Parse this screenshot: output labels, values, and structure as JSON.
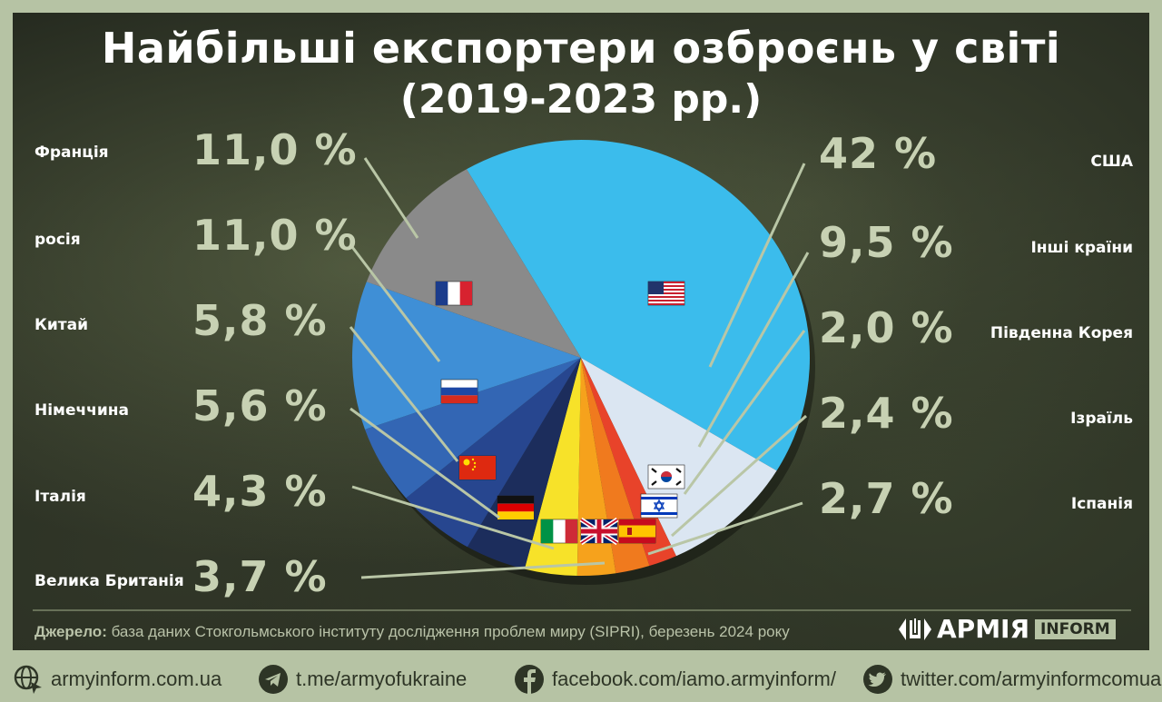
{
  "title": "Найбільші експортери озброєнь у світі",
  "subtitle": "(2019-2023 рр.)",
  "chart_data": {
    "type": "pie",
    "title": "Найбільші експортери озброєнь у світі",
    "subtitle": "(2019-2023 рр.)",
    "unit": "%",
    "slices": [
      {
        "label": "США",
        "value": 42,
        "value_label": "42 %",
        "color": "#3bbcec",
        "flag": "usa-flag-icon"
      },
      {
        "label": "Інші країни",
        "value": 9.5,
        "value_label": "9,5 %",
        "color": "#dbe6f2",
        "flag": ""
      },
      {
        "label": "Південна Корея",
        "value": 2.0,
        "value_label": "2,0 %",
        "color": "#e8432a",
        "flag": "south-korea-flag-icon"
      },
      {
        "label": "Ізраїль",
        "value": 2.4,
        "value_label": "2,4 %",
        "color": "#f07a1e",
        "flag": "israel-flag-icon"
      },
      {
        "label": "Іспанія",
        "value": 2.7,
        "value_label": "2,7 %",
        "color": "#f6a21c",
        "flag": "spain-flag-icon"
      },
      {
        "label": "Велика Британія",
        "value": 3.7,
        "value_label": "3,7 %",
        "color": "#f7e229",
        "flag": "uk-flag-icon"
      },
      {
        "label": "Італія",
        "value": 4.3,
        "value_label": "4,3 %",
        "color": "#1c2d5c",
        "flag": "italy-flag-icon"
      },
      {
        "label": "Німеччина",
        "value": 5.6,
        "value_label": "5,6 %",
        "color": "#27468f",
        "flag": "germany-flag-icon"
      },
      {
        "label": "Китай",
        "value": 5.8,
        "value_label": "5,8 %",
        "color": "#3366b4",
        "flag": "china-flag-icon"
      },
      {
        "label": "росія",
        "value": 11.0,
        "value_label": "11,0 %",
        "color": "#3f8fd6",
        "flag": "russia-flag-icon"
      },
      {
        "label": "Франція",
        "value": 11.0,
        "value_label": "11,0 %",
        "color": "#8a8a8a",
        "flag": "france-flag-icon"
      }
    ]
  },
  "labels_left": [
    {
      "country": "Франція",
      "pct": "11,0 %"
    },
    {
      "country": "росія",
      "pct": "11,0 %"
    },
    {
      "country": "Китай",
      "pct": "5,8 %"
    },
    {
      "country": "Німеччина",
      "pct": "5,6 %"
    },
    {
      "country": "Італія",
      "pct": "4,3 %"
    },
    {
      "country": "Велика Британія",
      "pct": "3,7 %"
    }
  ],
  "labels_right": [
    {
      "country": "США",
      "pct": "42 %"
    },
    {
      "country": "Інші країни",
      "pct": "9,5 %"
    },
    {
      "country": "Південна Корея",
      "pct": "2,0 %"
    },
    {
      "country": "Ізраїль",
      "pct": "2,4 %"
    },
    {
      "country": "Іспанія",
      "pct": "2,7 %"
    }
  ],
  "source": {
    "label": "Джерело:",
    "text": " база даних Стокгольмського інституту дослідження проблем миру (SIPRI), березень 2024 року"
  },
  "logo": {
    "word": "АРМІЯ",
    "inform": "INFORM"
  },
  "footer": {
    "website": "armyinform.com.ua",
    "telegram": "t.me/armyofukraine",
    "facebook": "facebook.com/iamo.armyinform/",
    "twitter": "twitter.com/armyinformcomua"
  },
  "colors": {
    "background": "#b6c3a4",
    "panel": "#262b20",
    "pct_text": "#c7d1b3",
    "leader_line": "#b9c6a6"
  }
}
